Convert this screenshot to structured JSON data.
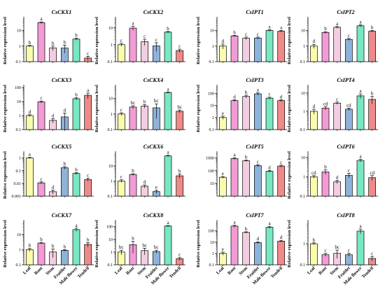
{
  "figure": {
    "colors": [
      "#fbfbae",
      "#f39bd5",
      "#f3cde1",
      "#8eb3da",
      "#77e8c2",
      "#ef8a8a"
    ],
    "categories": [
      "Leaf",
      "Root",
      "Stem",
      "Fruitlet",
      "Male flower",
      "Tendril"
    ]
  },
  "chart_data": [
    {
      "type": "bar",
      "title": "CsCKX1",
      "ylabel": "Relative expression level",
      "scale": "log",
      "ylim": [
        0.1,
        50
      ],
      "yticks": [
        0.1,
        1,
        10
      ],
      "ytick_labels": [
        "0.1",
        "1",
        "10"
      ],
      "categories": [
        "Leaf",
        "Root",
        "Stem",
        "Fruitlet",
        "Male flower",
        "Tendril"
      ],
      "values": [
        1.0,
        32,
        0.75,
        0.75,
        2.8,
        0.17
      ],
      "errors": [
        0.1,
        4,
        0.25,
        0.4,
        0.4,
        0.05
      ],
      "letters": [
        "b",
        "a",
        "b",
        "b",
        "b",
        "c"
      ]
    },
    {
      "type": "bar",
      "title": "CsCKX2",
      "ylabel": "Relative expression level",
      "scale": "log",
      "ylim": [
        0.1,
        30
      ],
      "yticks": [
        0.1,
        1,
        10
      ],
      "ytick_labels": [
        "0.1",
        "1",
        "10"
      ],
      "categories": [
        "Leaf",
        "Root",
        "Stem",
        "Fruitlet",
        "Male flower",
        "Tendril"
      ],
      "values": [
        1.0,
        9.5,
        1.5,
        0.85,
        5.5,
        0.45
      ],
      "errors": [
        0.2,
        2.5,
        0.6,
        0.45,
        0.5,
        0.1
      ],
      "letters": [
        "c",
        "a",
        "c",
        "c",
        "b",
        "c"
      ]
    },
    {
      "type": "bar",
      "title": "CsIPT1",
      "ylabel": "Relative expression level",
      "scale": "log",
      "ylim": [
        0.1,
        50
      ],
      "yticks": [
        0.1,
        1,
        10
      ],
      "ytick_labels": [
        "0.1",
        "1",
        "10"
      ],
      "categories": [
        "Leaf",
        "Root",
        "Stem",
        "Fruitlet",
        "Male flower",
        "Tendril"
      ],
      "values": [
        1.0,
        4.5,
        3.2,
        3.3,
        10,
        9
      ],
      "errors": [
        0.35,
        0.4,
        0.6,
        0.5,
        1.2,
        1.0
      ],
      "letters": [
        "d",
        "b",
        "c",
        "c",
        "a",
        "a"
      ]
    },
    {
      "type": "bar",
      "title": "CsIPT2",
      "ylabel": "Relative expression level",
      "scale": "log",
      "ylim": [
        0.1,
        50
      ],
      "yticks": [
        0.1,
        1,
        10
      ],
      "ytick_labels": [
        "0.1",
        "1",
        "10"
      ],
      "categories": [
        "Leaf",
        "Root",
        "Stem",
        "Fruitlet",
        "Male flower",
        "Tendril"
      ],
      "values": [
        1.0,
        7.5,
        16,
        2.7,
        20,
        9
      ],
      "errors": [
        0.3,
        1.0,
        2,
        0.4,
        3,
        1
      ],
      "letters": [
        "d",
        "b",
        "a",
        "c",
        "a",
        "b"
      ]
    },
    {
      "type": "bar",
      "title": "CsCKX3",
      "ylabel": "Relative expression level",
      "scale": "log",
      "ylim": [
        0.1,
        100
      ],
      "yticks": [
        0.1,
        1,
        10,
        100
      ],
      "ytick_labels": [
        "0.1",
        "1",
        "10",
        "100"
      ],
      "categories": [
        "Leaf",
        "Root",
        "Stem",
        "Fruitlet",
        "Male flower",
        "Tendril"
      ],
      "values": [
        1.0,
        9.5,
        0.45,
        0.8,
        16,
        28
      ],
      "errors": [
        0.15,
        1.5,
        0.15,
        0.7,
        3,
        12
      ],
      "letters": [
        "d",
        "c",
        "d",
        "d",
        "b",
        "a"
      ]
    },
    {
      "type": "bar",
      "title": "CsCKX4",
      "ylabel": "Relative expression level",
      "scale": "log",
      "ylim": [
        0.1,
        50
      ],
      "yticks": [
        0.1,
        1,
        10
      ],
      "ytick_labels": [
        "0.1",
        "1",
        "10"
      ],
      "categories": [
        "Leaf",
        "Root",
        "Stem",
        "Fruitlet",
        "Male flower",
        "Tendril"
      ],
      "values": [
        1.0,
        2.8,
        3.2,
        2.5,
        24,
        1.5
      ],
      "errors": [
        0.2,
        0.6,
        0.8,
        2.0,
        2,
        0.3
      ],
      "letters": [
        "c",
        "bc",
        "b",
        "bc",
        "a",
        "bc"
      ]
    },
    {
      "type": "bar",
      "title": "CsIPT3",
      "ylabel": "Relative expression level",
      "scale": "log",
      "ylim": [
        0.1,
        300
      ],
      "yticks": [
        0.1,
        1,
        10,
        100
      ],
      "ytick_labels": [
        "0.1",
        "1",
        "10",
        "100"
      ],
      "categories": [
        "Leaf",
        "Root",
        "Stem",
        "Fruitlet",
        "Male flower",
        "Tendril"
      ],
      "values": [
        1.0,
        25,
        55,
        90,
        40,
        25
      ],
      "errors": [
        0.3,
        4,
        15,
        20,
        8,
        4
      ],
      "letters": [
        "e",
        "d",
        "b",
        "a",
        "c",
        "d"
      ]
    },
    {
      "type": "bar",
      "title": "CsIPT4",
      "ylabel": "Relative expression level",
      "scale": "log",
      "ylim": [
        0.1,
        20
      ],
      "yticks": [
        0.1,
        1,
        10
      ],
      "ytick_labels": [
        "0.1",
        "1",
        "10"
      ],
      "categories": [
        "Leaf",
        "Root",
        "Stem",
        "Fruitlet",
        "Male flower",
        "Tendril"
      ],
      "values": [
        1.0,
        1.5,
        2.8,
        1.3,
        7,
        4.5
      ],
      "errors": [
        0.3,
        0.3,
        0.4,
        0.2,
        2,
        2
      ],
      "letters": [
        "d",
        "cd",
        "c",
        "cd",
        "a",
        "b"
      ]
    },
    {
      "type": "bar",
      "title": "CsCKX5",
      "ylabel": "Relative expression level",
      "scale": "log",
      "ylim": [
        0.001,
        2
      ],
      "yticks": [
        0.001,
        0.01,
        0.1,
        1
      ],
      "ytick_labels": [
        "0.001",
        "0.01",
        "0.1",
        "1"
      ],
      "categories": [
        "Leaf",
        "Root",
        "Stem",
        "Fruitlet",
        "Male flower",
        "Tendril"
      ],
      "values": [
        1.0,
        0.011,
        0.0022,
        0.17,
        0.06,
        0.02
      ],
      "errors": [
        0.1,
        0.002,
        0.0008,
        0.04,
        0.01,
        0.005
      ],
      "letters": [
        "a",
        "c",
        "d",
        "b",
        "b",
        "c"
      ]
    },
    {
      "type": "bar",
      "title": "CsCKX6",
      "ylabel": "",
      "scale": "log",
      "ylim": [
        0.1,
        60
      ],
      "yticks": [
        0.1,
        1,
        10
      ],
      "ytick_labels": [
        "0.1",
        "1",
        "10"
      ],
      "categories": [
        "Leaf",
        "Root",
        "Stem",
        "Fruitlet",
        "Male flower",
        "Tendril"
      ],
      "values": [
        1.0,
        2.7,
        0.45,
        0.2,
        45,
        2.2
      ],
      "errors": [
        0.2,
        0.3,
        0.1,
        0.05,
        5,
        0.7
      ],
      "letters": [
        "c",
        "b",
        "d",
        "e",
        "a",
        "b"
      ]
    },
    {
      "type": "bar",
      "title": "CsIPT5",
      "ylabel": "",
      "scale": "log",
      "ylim": [
        1,
        2000
      ],
      "yticks": [
        10,
        100,
        1000
      ],
      "ytick_labels": [
        "10",
        "100",
        "1000"
      ],
      "categories": [
        "Leaf",
        "Root",
        "Stem",
        "Fruitlet",
        "Male flower",
        "Tendril"
      ],
      "values": [
        30,
        900,
        600,
        250,
        90,
        230
      ],
      "errors": [
        5,
        150,
        80,
        50,
        15,
        40
      ],
      "letters": [
        "e",
        "a",
        "b",
        "c",
        "d",
        "c"
      ]
    },
    {
      "type": "bar",
      "title": "CsIPT6",
      "ylabel": "Relative expression level",
      "scale": "log",
      "ylim": [
        0.1,
        15
      ],
      "yticks": [
        0.1,
        1,
        10
      ],
      "ytick_labels": [
        "0.1",
        "1",
        "10"
      ],
      "categories": [
        "Leaf",
        "Root",
        "Stem",
        "Fruitlet",
        "Male flower",
        "Tendril"
      ],
      "values": [
        1.0,
        1.8,
        0.55,
        1.2,
        7,
        0.9
      ],
      "errors": [
        0.15,
        0.5,
        0.1,
        0.3,
        1,
        0.25
      ],
      "letters": [
        "cd",
        "b",
        "d",
        "c",
        "a",
        "cd"
      ]
    },
    {
      "type": "bar",
      "title": "CsCKX7",
      "ylabel": "Relative expression level",
      "scale": "log",
      "ylim": [
        0.1,
        60
      ],
      "yticks": [
        0.1,
        1,
        10
      ],
      "ytick_labels": [
        "0.1",
        "1",
        "10"
      ],
      "categories": [
        "Leaf",
        "Root",
        "Stem",
        "Fruitlet",
        "Male flower",
        "Tendril"
      ],
      "values": [
        1.0,
        2.7,
        0.7,
        0.9,
        21,
        2.2
      ],
      "errors": [
        0.2,
        0.3,
        0.4,
        0.1,
        5,
        0.7
      ],
      "letters": [
        "b",
        "b",
        "b",
        "b",
        "a",
        "b"
      ]
    },
    {
      "type": "bar",
      "title": "CsCKX8",
      "ylabel": "Relative expression level",
      "scale": "log",
      "ylim": [
        0.1,
        200
      ],
      "yticks": [
        0.1,
        1,
        10,
        100
      ],
      "ytick_labels": [
        "0.1",
        "1",
        "10",
        "100"
      ],
      "categories": [
        "Leaf",
        "Root",
        "Stem",
        "Fruitlet",
        "Male flower",
        "Tendril"
      ],
      "values": [
        1.0,
        3.8,
        1.3,
        1.1,
        110,
        0.3
      ],
      "errors": [
        0.4,
        3,
        0.7,
        0.3,
        10,
        0.07
      ],
      "letters": [
        "bc",
        "b",
        "bc",
        "bc",
        "a",
        "c"
      ]
    },
    {
      "type": "bar",
      "title": "CsIPT7",
      "ylabel": "Relative expression level",
      "scale": "log",
      "ylim": [
        0.1,
        500
      ],
      "yticks": [
        0.1,
        1,
        10,
        100
      ],
      "ytick_labels": [
        "0.1",
        "1",
        "10",
        "100"
      ],
      "categories": [
        "Leaf",
        "Root",
        "Stem",
        "Fruitlet",
        "Male flower",
        "Tendril"
      ],
      "values": [
        1.0,
        250,
        70,
        9,
        200,
        12
      ],
      "errors": [
        0.3,
        50,
        10,
        1.5,
        40,
        2
      ],
      "letters": [
        "e",
        "a",
        "b",
        "d",
        "a",
        "d"
      ]
    },
    {
      "type": "bar",
      "title": "CsIPT8",
      "ylabel": "Relative expression level",
      "scale": "log",
      "ylim": [
        0.1,
        10
      ],
      "yticks": [
        0.1,
        1
      ],
      "ytick_labels": [
        "0.1",
        "1"
      ],
      "categories": [
        "Leaf",
        "Root",
        "Stem",
        "Fruitlet",
        "Male flower",
        "Tendril"
      ],
      "values": [
        1.0,
        0.3,
        0.35,
        0.3,
        4,
        0.2
      ],
      "errors": [
        0.1,
        0.05,
        0.15,
        0.05,
        1,
        0.05
      ],
      "letters": [
        "b",
        "c",
        "bc",
        "c",
        "a",
        "c"
      ]
    }
  ]
}
